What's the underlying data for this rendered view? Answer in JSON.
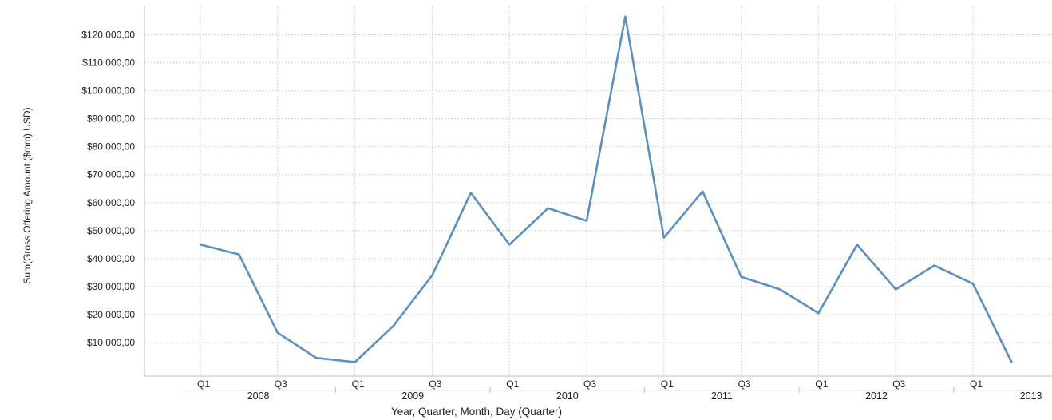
{
  "chart_data": {
    "type": "line",
    "xlabel": "Year, Quarter, Month, Day (Quarter)",
    "ylabel": "Sum(Gross Offering Amount ($mm) USD)",
    "y_ticks": [
      10000,
      20000,
      30000,
      40000,
      50000,
      60000,
      70000,
      80000,
      90000,
      100000,
      110000,
      120000
    ],
    "y_tick_labels": [
      "$10 000,00",
      "$20 000,00",
      "$30 000,00",
      "$40 000,00",
      "$50 000,00",
      "$60 000,00",
      "$70 000,00",
      "$80 000,00",
      "$90 000,00",
      "$100 000,00",
      "$110 000,00",
      "$120 000,00"
    ],
    "ylim": [
      0,
      130000
    ],
    "grid": true,
    "x_tick_labels": [
      {
        "year": "2008",
        "quarter": "Q1"
      },
      {
        "year": "2008",
        "quarter": "Q3"
      },
      {
        "year": "2009",
        "quarter": "Q1"
      },
      {
        "year": "2009",
        "quarter": "Q3"
      },
      {
        "year": "2010",
        "quarter": "Q1"
      },
      {
        "year": "2010",
        "quarter": "Q3"
      },
      {
        "year": "2011",
        "quarter": "Q1"
      },
      {
        "year": "2011",
        "quarter": "Q3"
      },
      {
        "year": "2012",
        "quarter": "Q1"
      },
      {
        "year": "2012",
        "quarter": "Q3"
      },
      {
        "year": "2013",
        "quarter": "Q1"
      }
    ],
    "years": [
      "2008",
      "2009",
      "2010",
      "2011",
      "2012",
      "2013"
    ],
    "color": "#5a8fc3",
    "series": [
      {
        "x": [
          "2008 Q1",
          "2008 Q2",
          "2008 Q3",
          "2008 Q4",
          "2009 Q1",
          "2009 Q2",
          "2009 Q3",
          "2009 Q4",
          "2010 Q1",
          "2010 Q2",
          "2010 Q3",
          "2010 Q4",
          "2011 Q1",
          "2011 Q2",
          "2011 Q3",
          "2011 Q4",
          "2012 Q1",
          "2012 Q2",
          "2012 Q3",
          "2012 Q4",
          "2013 Q1",
          "2013 Q2"
        ],
        "values": [
          45000,
          41500,
          13500,
          4500,
          3000,
          16000,
          34000,
          63500,
          45000,
          58000,
          53500,
          126500,
          47500,
          64000,
          33500,
          29000,
          20500,
          45000,
          29000,
          37500,
          31000,
          3000
        ]
      }
    ]
  }
}
